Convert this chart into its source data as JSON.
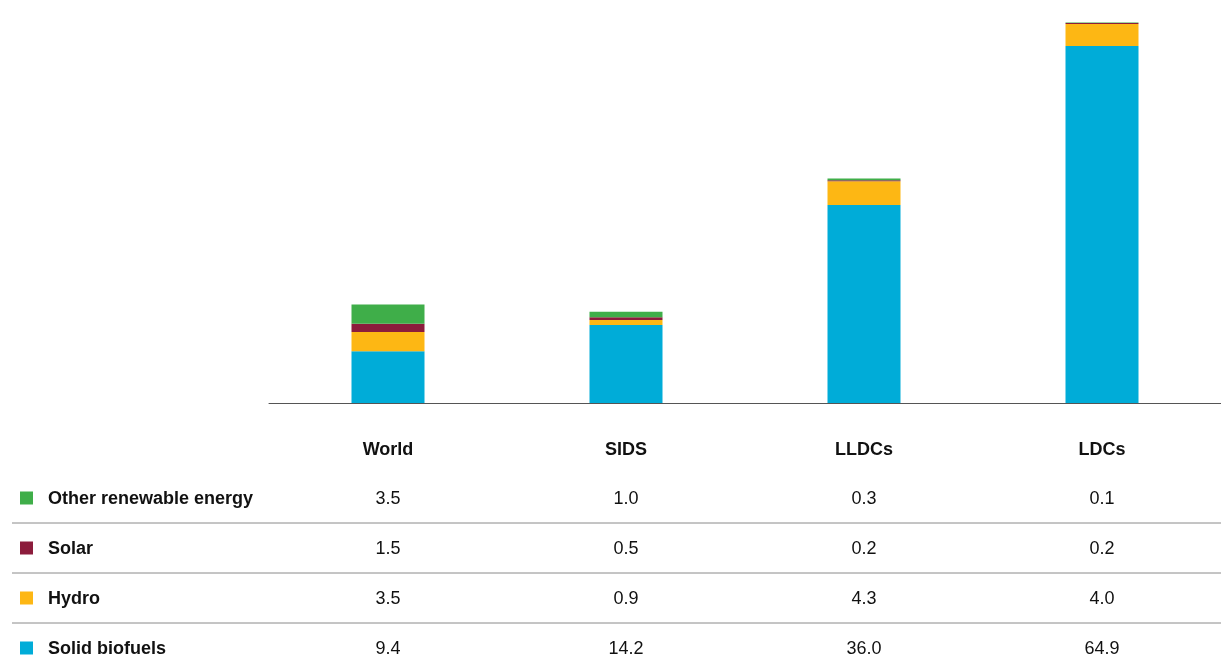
{
  "chart_data": {
    "type": "bar",
    "stacked": true,
    "legend": "bottom",
    "categories": [
      "World",
      "SIDS",
      "LLDCs",
      "LDCs"
    ],
    "series": [
      {
        "name": "Solid biofuels",
        "color": "#00acd8",
        "values": [
          9.4,
          14.2,
          36.0,
          64.9
        ],
        "value_labels": [
          "9.4",
          "14.2",
          "36.0",
          "64.9"
        ]
      },
      {
        "name": "Hydro",
        "color": "#fdb714",
        "values": [
          3.5,
          0.9,
          4.3,
          4.0
        ],
        "value_labels": [
          "3.5",
          "0.9",
          "4.3",
          "4.0"
        ]
      },
      {
        "name": "Solar",
        "color": "#8c1c3c",
        "values": [
          1.5,
          0.5,
          0.2,
          0.2
        ],
        "value_labels": [
          "1.5",
          "0.5",
          "0.2",
          "0.2"
        ]
      },
      {
        "name": "Other renewable energy",
        "color": "#3fae49",
        "values": [
          3.5,
          1.0,
          0.3,
          0.1
        ],
        "value_labels": [
          "3.5",
          "1.0",
          "0.3",
          "0.1"
        ]
      }
    ]
  }
}
